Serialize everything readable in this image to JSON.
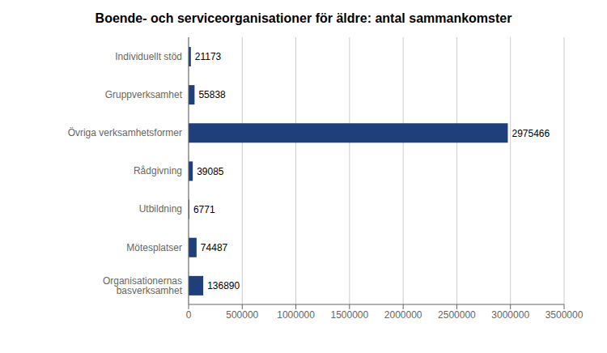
{
  "chart_data": {
    "type": "bar",
    "orientation": "horizontal",
    "title": "Boende- och serviceorganisationer för äldre: antal sammankomster",
    "categories": [
      "Individuellt stöd",
      "Gruppverksamhet",
      "Övriga verksamhetsformer",
      "Rådgivning",
      "Utbildning",
      "Mötesplatser",
      "Organisationernas basverksamhet"
    ],
    "values": [
      21173,
      55838,
      2975466,
      39085,
      6771,
      74487,
      136890
    ],
    "color": "#1f3f7a",
    "xlim": [
      0,
      3500000
    ],
    "xticks": [
      0,
      500000,
      1000000,
      1500000,
      2000000,
      2500000,
      3000000,
      3500000
    ],
    "grid": true,
    "data_labels": true
  }
}
